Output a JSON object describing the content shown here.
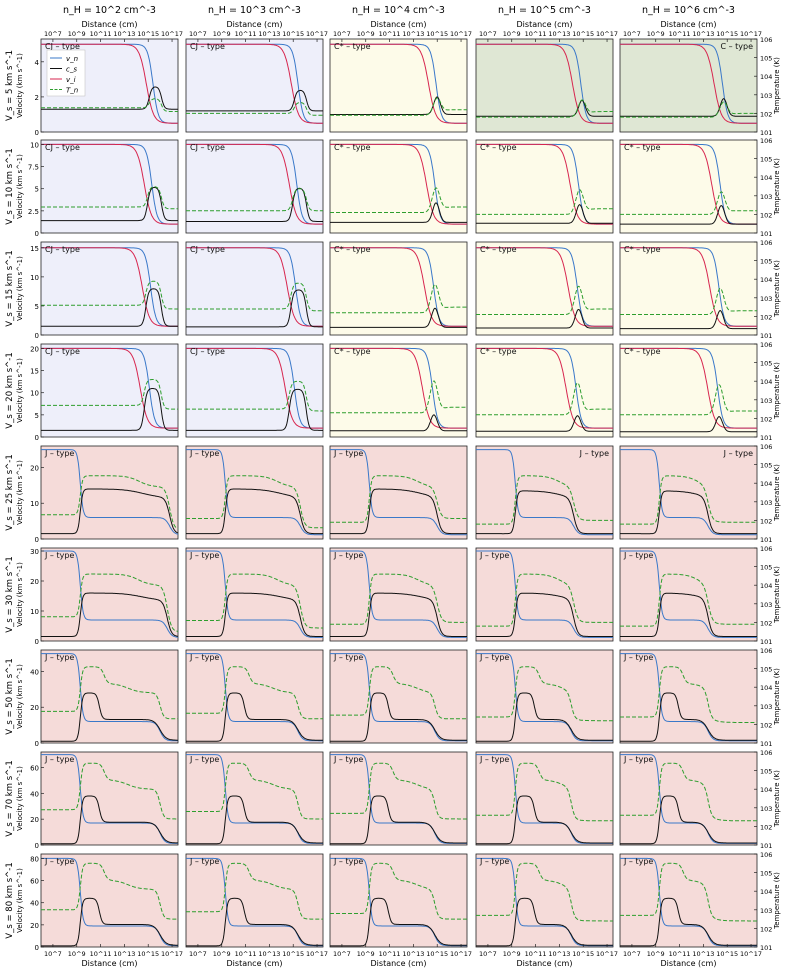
{
  "figure": {
    "col_headers": [
      "n_H = 10^2 cm^-3",
      "n_H = 10^3 cm^-3",
      "n_H = 10^4 cm^-3",
      "n_H = 10^5 cm^-3",
      "n_H = 10^6 cm^-3"
    ],
    "row_headers": [
      "V_s = 5 km s^-1",
      "V_s = 10 km s^-1",
      "V_s = 15 km s^-1",
      "V_s = 20 km s^-1",
      "V_s = 25 km s^-1",
      "V_s = 30 km s^-1",
      "V_s = 50 km s^-1",
      "V_s = 70 km s^-1",
      "V_s = 80 km s^-1"
    ],
    "xlabel": "Distance (cm)",
    "ylabel_left": "Velocity (km s^-1)",
    "ylabel_right": "Temperature (K)",
    "x_tick_labels_top": [
      "10^7",
      "10^9",
      "10^11",
      "10^13",
      "10^15",
      "10^17"
    ],
    "x_tick_labels_bottom": [
      "10^7",
      "10^9",
      "10^11",
      "10^13",
      "10^15",
      "10^17"
    ],
    "right_axis_ticks": [
      "10^1",
      "10^2",
      "10^3",
      "10^4",
      "10^5",
      "10^6"
    ],
    "legend": [
      {
        "key": "v_n",
        "label": "v_n",
        "color": "#3a78c9",
        "style": "solid"
      },
      {
        "key": "c_s",
        "label": "c_s",
        "color": "#111111",
        "style": "solid"
      },
      {
        "key": "v_i",
        "label": "v_i",
        "color": "#d7264f",
        "style": "solid"
      },
      {
        "key": "T_n",
        "label": "T_n",
        "color": "#2e9e2e",
        "style": "dashed"
      }
    ],
    "background_colors": {
      "CJ": "#eeeffa",
      "Cstar": "#fdfbe9",
      "C": "#dfe7d4",
      "J": "#f5dbd9"
    }
  },
  "chart_data": {
    "type": "line",
    "x": "log10 distance (cm)",
    "xlim": [
      6,
      17.5
    ],
    "rows": [
      {
        "vs": 5,
        "ylim": [
          0,
          5.3
        ],
        "yticks": [
          0,
          2,
          4
        ],
        "cells": [
          {
            "type": "CJ",
            "label": "CJ – type",
            "shock_start": 14.6,
            "width": 1.6,
            "cs_peak": 2.6,
            "cs_post": 1.3,
            "Tn_pre": 2.3,
            "Tn_peak": 2.8,
            "Tn_post": 2.1
          },
          {
            "type": "CJ",
            "label": "CJ – type",
            "shock_start": 14.6,
            "width": 1.6,
            "cs_peak": 2.4,
            "cs_post": 1.2,
            "Tn_pre": 2.0,
            "Tn_peak": 2.6,
            "Tn_post": 1.9
          },
          {
            "type": "Cstar",
            "label": "C* – type",
            "shock_start": 14.0,
            "width": 1.8,
            "cs_peak": 2.0,
            "cs_post": 1.0,
            "Tn_pre": 1.9,
            "Tn_peak": 2.8,
            "Tn_post": 2.2
          },
          {
            "type": "C",
            "label": "",
            "shock_start": 13.8,
            "width": 2.0,
            "cs_peak": 1.8,
            "cs_post": 0.9,
            "Tn_pre": 1.8,
            "Tn_peak": 2.7,
            "Tn_post": 2.1
          },
          {
            "type": "C",
            "label": "C – type",
            "shock_start": 13.6,
            "width": 2.0,
            "cs_peak": 1.9,
            "cs_post": 0.9,
            "Tn_pre": 1.8,
            "Tn_peak": 2.6,
            "Tn_post": 2.0
          }
        ]
      },
      {
        "vs": 10,
        "ylim": [
          0,
          10.5
        ],
        "yticks": [
          0,
          2.5,
          5,
          7.5,
          10
        ],
        "cells": [
          {
            "type": "CJ",
            "label": "CJ – type",
            "shock_start": 14.4,
            "width": 1.8,
            "cs_peak": 5.2,
            "cs_post": 1.4,
            "Tn_pre": 2.4,
            "Tn_peak": 3.5,
            "Tn_post": 2.3
          },
          {
            "type": "CJ",
            "label": "CJ – type",
            "shock_start": 14.4,
            "width": 1.8,
            "cs_peak": 5.1,
            "cs_post": 1.3,
            "Tn_pre": 2.2,
            "Tn_peak": 3.4,
            "Tn_post": 2.2
          },
          {
            "type": "Cstar",
            "label": "C* – type",
            "shock_start": 13.8,
            "width": 2.0,
            "cs_peak": 3.4,
            "cs_post": 1.2,
            "Tn_pre": 2.1,
            "Tn_peak": 3.4,
            "Tn_post": 2.4
          },
          {
            "type": "Cstar",
            "label": "C* – type",
            "shock_start": 13.6,
            "width": 2.0,
            "cs_peak": 3.2,
            "cs_post": 1.1,
            "Tn_pre": 2.0,
            "Tn_peak": 3.3,
            "Tn_post": 2.3
          },
          {
            "type": "Cstar",
            "label": "C* – type",
            "shock_start": 13.4,
            "width": 2.0,
            "cs_peak": 3.1,
            "cs_post": 1.0,
            "Tn_pre": 2.0,
            "Tn_peak": 3.2,
            "Tn_post": 2.2
          }
        ]
      },
      {
        "vs": 15,
        "ylim": [
          0,
          16
        ],
        "yticks": [
          0,
          5,
          10,
          15
        ],
        "cells": [
          {
            "type": "CJ",
            "label": "CJ – type",
            "shock_start": 14.2,
            "width": 2.0,
            "cs_peak": 8.0,
            "cs_post": 1.5,
            "Tn_pre": 2.6,
            "Tn_peak": 3.9,
            "Tn_post": 2.4
          },
          {
            "type": "CJ",
            "label": "CJ – type",
            "shock_start": 14.2,
            "width": 2.0,
            "cs_peak": 7.8,
            "cs_post": 1.4,
            "Tn_pre": 2.4,
            "Tn_peak": 3.8,
            "Tn_post": 2.3
          },
          {
            "type": "Cstar",
            "label": "C* – type",
            "shock_start": 13.6,
            "width": 2.2,
            "cs_peak": 4.6,
            "cs_post": 1.3,
            "Tn_pre": 2.2,
            "Tn_peak": 3.7,
            "Tn_post": 2.5
          },
          {
            "type": "Cstar",
            "label": "C* – type",
            "shock_start": 13.4,
            "width": 2.2,
            "cs_peak": 4.4,
            "cs_post": 1.2,
            "Tn_pre": 2.1,
            "Tn_peak": 3.6,
            "Tn_post": 2.4
          },
          {
            "type": "Cstar",
            "label": "C* – type",
            "shock_start": 13.2,
            "width": 2.2,
            "cs_peak": 4.2,
            "cs_post": 1.1,
            "Tn_pre": 2.1,
            "Tn_peak": 3.5,
            "Tn_post": 2.3
          }
        ]
      },
      {
        "vs": 20,
        "ylim": [
          0,
          21
        ],
        "yticks": [
          0,
          5,
          10,
          15,
          20
        ],
        "cells": [
          {
            "type": "CJ",
            "label": "CJ – type",
            "shock_start": 14.0,
            "width": 2.2,
            "cs_peak": 11.0,
            "cs_post": 1.5,
            "Tn_pre": 2.7,
            "Tn_peak": 4.1,
            "Tn_post": 2.5
          },
          {
            "type": "CJ",
            "label": "CJ – type",
            "shock_start": 14.0,
            "width": 2.2,
            "cs_peak": 10.8,
            "cs_post": 1.5,
            "Tn_pre": 2.5,
            "Tn_peak": 4.0,
            "Tn_post": 2.4
          },
          {
            "type": "Cstar",
            "label": "C* – type",
            "shock_start": 13.4,
            "width": 2.4,
            "cs_peak": 5.0,
            "cs_post": 1.4,
            "Tn_pre": 2.3,
            "Tn_peak": 4.0,
            "Tn_post": 2.6
          },
          {
            "type": "Cstar",
            "label": "C* – type",
            "shock_start": 13.2,
            "width": 2.4,
            "cs_peak": 4.8,
            "cs_post": 1.3,
            "Tn_pre": 2.2,
            "Tn_peak": 3.9,
            "Tn_post": 2.5
          },
          {
            "type": "Cstar",
            "label": "C* – type",
            "shock_start": 13.0,
            "width": 2.4,
            "cs_peak": 4.6,
            "cs_post": 1.2,
            "Tn_pre": 2.2,
            "Tn_peak": 3.8,
            "Tn_post": 2.4
          }
        ]
      },
      {
        "vs": 25,
        "ylim": [
          0,
          26
        ],
        "yticks": [
          0,
          10,
          20
        ],
        "cells": [
          {
            "type": "J",
            "label": "J – type",
            "label_pos": "left",
            "front": 9.3,
            "cs_plateau": 14,
            "vn_post": 6,
            "end": 16.8,
            "Tn_pre": 2.3,
            "Tn_plateau": 4.4,
            "Tn_end": 1.5
          },
          {
            "type": "J",
            "label": "J – type",
            "label_pos": "left",
            "front": 9.3,
            "cs_plateau": 14,
            "vn_post": 6,
            "end": 15.6,
            "Tn_pre": 2.1,
            "Tn_plateau": 4.4,
            "Tn_end": 1.6
          },
          {
            "type": "J",
            "label": "J – type",
            "label_pos": "left",
            "front": 9.3,
            "cs_plateau": 14,
            "vn_post": 6,
            "end": 15.0,
            "Tn_pre": 1.9,
            "Tn_plateau": 4.4,
            "Tn_end": 2.1
          },
          {
            "type": "J",
            "label": "J – type",
            "label_pos": "right",
            "front": 9.3,
            "cs_plateau": 13.5,
            "vn_post": 6,
            "end": 14.2,
            "Tn_pre": 1.8,
            "Tn_plateau": 4.4,
            "Tn_end": 2.0
          },
          {
            "type": "J",
            "label": "J – type",
            "label_pos": "right",
            "front": 9.3,
            "cs_plateau": 13.5,
            "vn_post": 6,
            "end": 13.4,
            "Tn_pre": 1.8,
            "Tn_plateau": 4.4,
            "Tn_end": 1.9
          }
        ]
      },
      {
        "vs": 30,
        "ylim": [
          0,
          31
        ],
        "yticks": [
          0,
          10,
          20,
          30
        ],
        "cells": [
          {
            "type": "J",
            "label": "J – type",
            "label_pos": "left",
            "front": 9.3,
            "cs_plateau": 16,
            "vn_post": 7,
            "end": 16.6,
            "Tn_pre": 2.3,
            "Tn_plateau": 4.6,
            "Tn_end": 1.5
          },
          {
            "type": "J",
            "label": "J – type",
            "label_pos": "left",
            "front": 9.3,
            "cs_plateau": 16,
            "vn_post": 7,
            "end": 15.6,
            "Tn_pre": 2.1,
            "Tn_plateau": 4.6,
            "Tn_end": 1.7
          },
          {
            "type": "J",
            "label": "J – type",
            "label_pos": "left",
            "front": 9.3,
            "cs_plateau": 16,
            "vn_post": 7,
            "end": 15.0,
            "Tn_pre": 1.9,
            "Tn_plateau": 4.6,
            "Tn_end": 2.0
          },
          {
            "type": "J",
            "label": "J – type",
            "label_pos": "left",
            "front": 9.3,
            "cs_plateau": 16,
            "vn_post": 7,
            "end": 14.2,
            "Tn_pre": 1.8,
            "Tn_plateau": 4.6,
            "Tn_end": 2.0
          },
          {
            "type": "J",
            "label": "J – type",
            "label_pos": "left",
            "front": 9.3,
            "cs_plateau": 16,
            "vn_post": 7,
            "end": 13.4,
            "Tn_pre": 1.8,
            "Tn_plateau": 4.6,
            "Tn_end": 1.9
          }
        ]
      },
      {
        "vs": 50,
        "ylim": [
          0,
          52
        ],
        "yticks": [
          0,
          20,
          40
        ],
        "cells": [
          {
            "type": "J",
            "label": "J – type",
            "label_pos": "left",
            "front": 9.3,
            "cs_peak": 28,
            "vn_post": 12,
            "end": 16.0,
            "Tn_pre": 2.7,
            "Tn_peak": 5.1,
            "Tn_end": 2.3
          },
          {
            "type": "J",
            "label": "J – type",
            "label_pos": "left",
            "front": 9.3,
            "cs_peak": 28,
            "vn_post": 12,
            "end": 15.4,
            "Tn_pre": 2.6,
            "Tn_peak": 5.1,
            "Tn_end": 2.3
          },
          {
            "type": "J",
            "label": "J – type",
            "label_pos": "left",
            "front": 9.3,
            "cs_peak": 28,
            "vn_post": 12,
            "end": 14.8,
            "Tn_pre": 2.5,
            "Tn_peak": 5.1,
            "Tn_end": 2.3
          },
          {
            "type": "J",
            "label": "J – type",
            "label_pos": "left",
            "front": 9.3,
            "cs_peak": 28,
            "vn_post": 12,
            "end": 14.0,
            "Tn_pre": 2.4,
            "Tn_peak": 5.1,
            "Tn_end": 2.2
          },
          {
            "type": "J",
            "label": "J – type",
            "label_pos": "left",
            "front": 9.3,
            "cs_peak": 28,
            "vn_post": 12,
            "end": 13.4,
            "Tn_pre": 2.4,
            "Tn_peak": 5.1,
            "Tn_end": 2.1
          }
        ]
      },
      {
        "vs": 70,
        "ylim": [
          0,
          72
        ],
        "yticks": [
          0,
          20,
          40,
          60
        ],
        "cells": [
          {
            "type": "J",
            "label": "J – type",
            "label_pos": "left",
            "front": 9.3,
            "cs_peak": 38,
            "vn_post": 17,
            "end": 16.0,
            "Tn_pre": 2.9,
            "Tn_peak": 5.4,
            "Tn_end": 2.4
          },
          {
            "type": "J",
            "label": "J – type",
            "label_pos": "left",
            "front": 9.3,
            "cs_peak": 38,
            "vn_post": 17,
            "end": 15.4,
            "Tn_pre": 2.8,
            "Tn_peak": 5.4,
            "Tn_end": 2.4
          },
          {
            "type": "J",
            "label": "J – type",
            "label_pos": "left",
            "front": 9.3,
            "cs_peak": 38,
            "vn_post": 17,
            "end": 14.8,
            "Tn_pre": 2.7,
            "Tn_peak": 5.4,
            "Tn_end": 2.4
          },
          {
            "type": "J",
            "label": "J – type",
            "label_pos": "left",
            "front": 9.3,
            "cs_peak": 38,
            "vn_post": 17,
            "end": 14.0,
            "Tn_pre": 2.6,
            "Tn_peak": 5.4,
            "Tn_end": 2.3
          },
          {
            "type": "J",
            "label": "J – type",
            "label_pos": "left",
            "front": 9.3,
            "cs_peak": 38,
            "vn_post": 17,
            "end": 13.4,
            "Tn_pre": 2.6,
            "Tn_peak": 5.4,
            "Tn_end": 2.3
          }
        ]
      },
      {
        "vs": 80,
        "ylim": [
          0,
          84
        ],
        "yticks": [
          0,
          20,
          40,
          60,
          80
        ],
        "cells": [
          {
            "type": "J",
            "label": "J – type",
            "label_pos": "left",
            "front": 9.3,
            "cs_peak": 44,
            "vn_post": 19,
            "end": 16.0,
            "Tn_pre": 3.0,
            "Tn_peak": 5.5,
            "Tn_end": 2.5
          },
          {
            "type": "J",
            "label": "J – type",
            "label_pos": "left",
            "front": 9.3,
            "cs_peak": 44,
            "vn_post": 19,
            "end": 15.4,
            "Tn_pre": 2.9,
            "Tn_peak": 5.5,
            "Tn_end": 2.5
          },
          {
            "type": "J",
            "label": "J – type",
            "label_pos": "left",
            "front": 9.3,
            "cs_peak": 44,
            "vn_post": 19,
            "end": 14.8,
            "Tn_pre": 2.8,
            "Tn_peak": 5.5,
            "Tn_end": 2.5
          },
          {
            "type": "J",
            "label": "J – type",
            "label_pos": "left",
            "front": 9.3,
            "cs_peak": 44,
            "vn_post": 19,
            "end": 14.0,
            "Tn_pre": 2.7,
            "Tn_peak": 5.5,
            "Tn_end": 2.4
          },
          {
            "type": "J",
            "label": "J – type",
            "label_pos": "left",
            "front": 9.3,
            "cs_peak": 44,
            "vn_post": 19,
            "end": 13.4,
            "Tn_pre": 2.7,
            "Tn_peak": 5.5,
            "Tn_end": 2.4
          }
        ]
      }
    ]
  }
}
